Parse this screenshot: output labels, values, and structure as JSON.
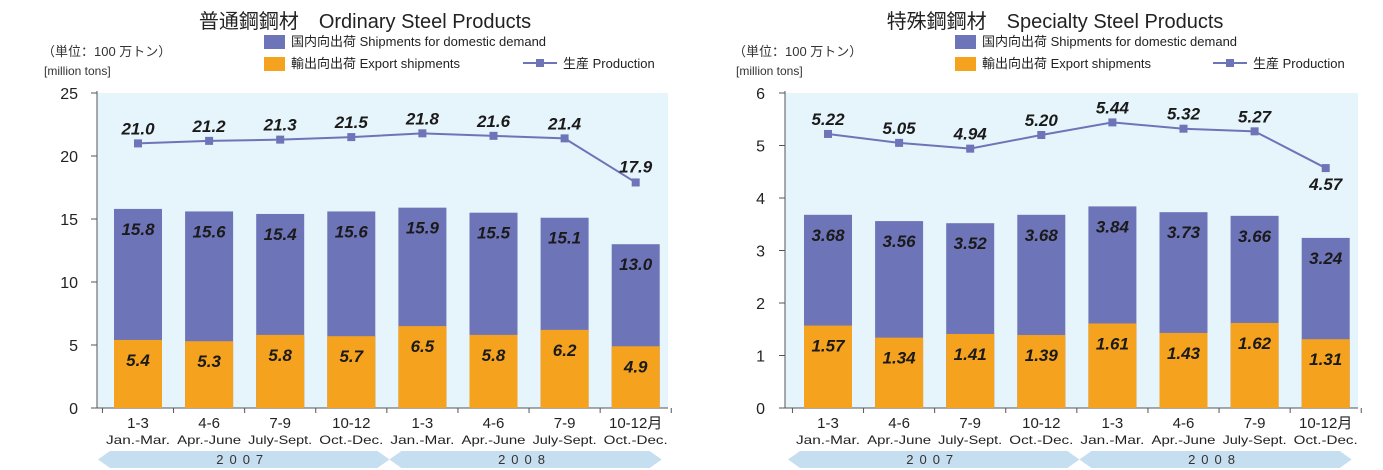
{
  "colors": {
    "plot_bg": "#e6f4fb",
    "domestic": "#6e74b8",
    "export": "#f5a21e",
    "production": "#6e74b8",
    "year_band": "#c5def0",
    "axis": "#555555"
  },
  "chart_data": [
    {
      "type": "bar",
      "title": "普通鋼鋼材　Ordinary Steel Products",
      "unit_jp": "（単位：100 万トン）",
      "unit_en": "[million tons]",
      "categories": [
        "1-3",
        "4-6",
        "7-9",
        "10-12",
        "1-3",
        "4-6",
        "7-9",
        "10-12月"
      ],
      "category_sub": [
        "Jan.-Mar.",
        "Apr.-June",
        "July-Sept.",
        "Oct.-Dec.",
        "Jan.-Mar.",
        "Apr.-June",
        "July-Sept.",
        "Oct.-Dec."
      ],
      "years": [
        "2007",
        "2008"
      ],
      "ylim": [
        0,
        25
      ],
      "yticks": [
        0,
        5,
        10,
        15,
        20,
        25
      ],
      "series": [
        {
          "name": "国内向出荷 Shipments for domestic demand",
          "type": "bar",
          "values": [
            15.8,
            15.6,
            15.4,
            15.6,
            15.9,
            15.5,
            15.1,
            13.0
          ]
        },
        {
          "name": "輸出向出荷 Export shipments",
          "type": "bar",
          "values": [
            5.4,
            5.3,
            5.8,
            5.7,
            6.5,
            5.8,
            6.2,
            4.9
          ]
        },
        {
          "name": "生産 Production",
          "type": "line",
          "values": [
            21.0,
            21.2,
            21.3,
            21.5,
            21.8,
            21.6,
            21.4,
            17.9
          ]
        }
      ],
      "labels": {
        "domestic": [
          "15.8",
          "15.6",
          "15.4",
          "15.6",
          "15.9",
          "15.5",
          "15.1",
          "13.0"
        ],
        "export": [
          "5.4",
          "5.3",
          "5.8",
          "5.7",
          "6.5",
          "5.8",
          "6.2",
          "4.9"
        ],
        "production": [
          "21.0",
          "21.2",
          "21.3",
          "21.5",
          "21.8",
          "21.6",
          "21.4",
          "17.9"
        ]
      },
      "legend": {
        "domestic": "国内向出荷 Shipments for domestic demand",
        "export": "輸出向出荷 Export shipments",
        "production": "生産 Production"
      }
    },
    {
      "type": "bar",
      "title": "特殊鋼鋼材　Specialty Steel Products",
      "unit_jp": "（単位：100 万トン）",
      "unit_en": "[million tons]",
      "categories": [
        "1-3",
        "4-6",
        "7-9",
        "10-12",
        "1-3",
        "4-6",
        "7-9",
        "10-12月"
      ],
      "category_sub": [
        "Jan.-Mar.",
        "Apr.-June",
        "July-Sept.",
        "Oct.-Dec.",
        "Jan.-Mar.",
        "Apr.-June",
        "July-Sept.",
        "Oct.-Dec."
      ],
      "years": [
        "2007",
        "2008"
      ],
      "ylim": [
        0,
        6
      ],
      "yticks": [
        0,
        1,
        2,
        3,
        4,
        5,
        6
      ],
      "series": [
        {
          "name": "国内向出荷 Shipments for domestic demand",
          "type": "bar",
          "values": [
            3.68,
            3.56,
            3.52,
            3.68,
            3.84,
            3.73,
            3.66,
            3.24
          ]
        },
        {
          "name": "輸出向出荷 Export shipments",
          "type": "bar",
          "values": [
            1.57,
            1.34,
            1.41,
            1.39,
            1.61,
            1.43,
            1.62,
            1.31
          ]
        },
        {
          "name": "生産 Production",
          "type": "line",
          "values": [
            5.22,
            5.05,
            4.94,
            5.2,
            5.44,
            5.32,
            5.27,
            4.57
          ]
        }
      ],
      "labels": {
        "domestic": [
          "3.68",
          "3.56",
          "3.52",
          "3.68",
          "3.84",
          "3.73",
          "3.66",
          "3.24"
        ],
        "export": [
          "1.57",
          "1.34",
          "1.41",
          "1.39",
          "1.61",
          "1.43",
          "1.62",
          "1.31"
        ],
        "production": [
          "5.22",
          "5.05",
          "4.94",
          "5.20",
          "5.44",
          "5.32",
          "5.27",
          "4.57"
        ]
      },
      "legend": {
        "domestic": "国内向出荷 Shipments for domestic demand",
        "export": "輸出向出荷 Export shipments",
        "production": "生産 Production"
      }
    }
  ]
}
